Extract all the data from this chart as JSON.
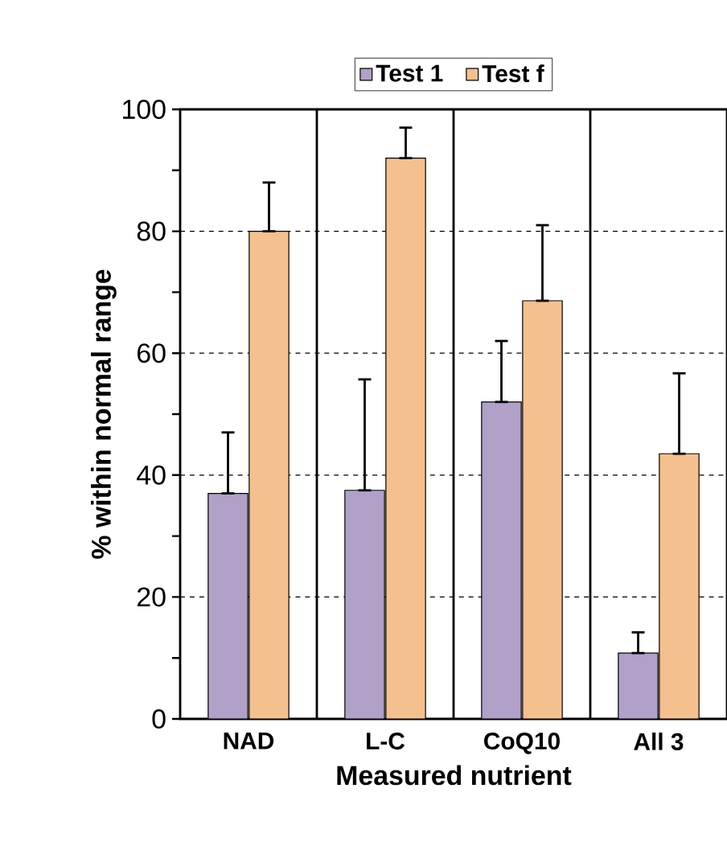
{
  "chart_data": {
    "type": "bar",
    "xlabel": "Measured nutrient",
    "ylabel": "% within normal range",
    "categories": [
      "NAD",
      "L-C",
      "CoQ10",
      "All 3"
    ],
    "series": [
      {
        "name": "Test 1",
        "color": "#b1a0c7",
        "values": [
          37,
          37.5,
          52,
          10.8
        ],
        "errors": [
          [
            37,
            47
          ],
          [
            37.5,
            55.7
          ],
          [
            52,
            62
          ],
          [
            10.8,
            14.2
          ]
        ]
      },
      {
        "name": "Test f",
        "color": "#f5c08f",
        "values": [
          80,
          92,
          68.6,
          43.5
        ],
        "errors": [
          [
            80,
            88
          ],
          [
            92,
            97
          ],
          [
            68.6,
            81
          ],
          [
            43.5,
            56.7
          ]
        ]
      }
    ],
    "ylim": [
      0,
      100
    ],
    "yticks": [
      0,
      {
        "value": 10,
        "label": null
      },
      20,
      {
        "value": 30,
        "label": null
      },
      40,
      {
        "value": 50,
        "label": null
      },
      60,
      {
        "value": 70,
        "label": null
      },
      80,
      {
        "value": 90,
        "label": null
      },
      100
    ],
    "grid": true,
    "legend": "top"
  }
}
